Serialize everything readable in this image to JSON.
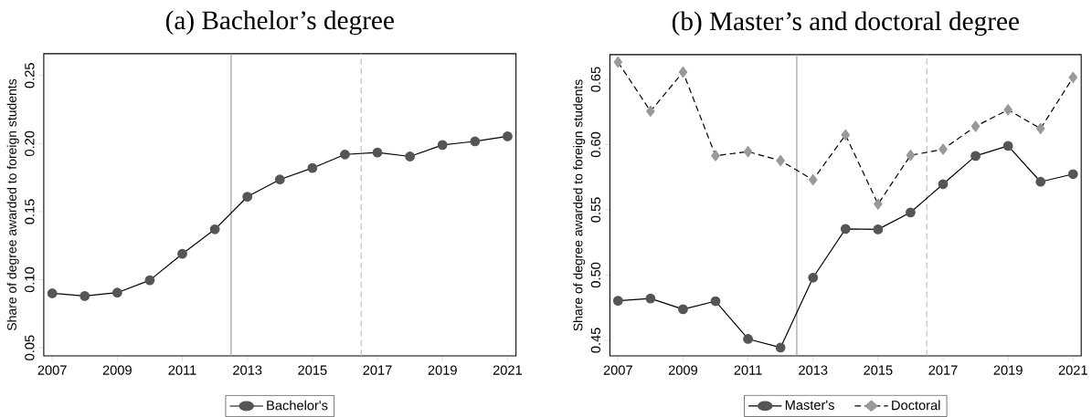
{
  "chart_data": [
    {
      "type": "line",
      "title": "(a) Bachelor’s degree",
      "ylabel": "Share of degree awarded to foreign students",
      "x": [
        2007,
        2008,
        2009,
        2010,
        2011,
        2012,
        2013,
        2014,
        2015,
        2016,
        2017,
        2018,
        2019,
        2020,
        2021
      ],
      "series": [
        {
          "name": "Bachelor's",
          "color": "#555555",
          "marker": "circle",
          "line_style": "solid",
          "values": [
            0.09,
            0.088,
            0.0905,
            0.0996,
            0.119,
            0.137,
            0.161,
            0.1736,
            0.182,
            0.192,
            0.1934,
            0.1905,
            0.199,
            0.2016,
            0.2053
          ]
        }
      ],
      "xlim": [
        2006.74,
        2021.26
      ],
      "xticks": [
        2007,
        2009,
        2011,
        2013,
        2015,
        2017,
        2019,
        2021
      ],
      "ylim": [
        0.044,
        0.266
      ],
      "yticks": [
        {
          "value": 0.05,
          "label": "0.05"
        },
        {
          "value": 0.1,
          "label": "0.10"
        },
        {
          "value": 0.15,
          "label": "0.15"
        },
        {
          "value": 0.2,
          "label": "0.20"
        },
        {
          "value": 0.25,
          "label": "0.25"
        }
      ],
      "ref_lines": [
        {
          "axis": "x",
          "value": 2012.5,
          "color": "#a0a0a0",
          "line_style": "solid"
        },
        {
          "axis": "x",
          "value": 2016.5,
          "color": "#c0c0c0",
          "line_style": "dashed"
        }
      ],
      "grid": false,
      "legend": "bottom"
    },
    {
      "type": "line",
      "title": "(b) Master’s and doctoral degree",
      "ylabel": "Share of degree awarded to foreign students",
      "x": [
        2007,
        2008,
        2009,
        2010,
        2011,
        2012,
        2013,
        2014,
        2015,
        2016,
        2017,
        2018,
        2019,
        2020,
        2021
      ],
      "series": [
        {
          "name": "Master's",
          "color": "#555555",
          "marker": "circle",
          "line_style": "solid",
          "values": [
            0.4803,
            0.482,
            0.4738,
            0.48,
            0.451,
            0.4444,
            0.498,
            0.5354,
            0.535,
            0.548,
            0.5697,
            0.5913,
            0.599,
            0.5715,
            0.5774
          ]
        },
        {
          "name": "Doctoral",
          "color": "#999999",
          "marker": "diamond",
          "line_style": "dashed",
          "values": [
            0.6633,
            0.6256,
            0.6556,
            0.5915,
            0.5946,
            0.5877,
            0.573,
            0.6074,
            0.5544,
            0.5918,
            0.5964,
            0.614,
            0.6267,
            0.6123,
            0.6515
          ]
        }
      ],
      "xlim": [
        2006.75,
        2021.25
      ],
      "xticks": [
        2007,
        2009,
        2011,
        2013,
        2015,
        2017,
        2019,
        2021
      ],
      "ylim": [
        0.438,
        0.669
      ],
      "yticks": [
        {
          "value": 0.45,
          "label": "0.45"
        },
        {
          "value": 0.5,
          "label": "0.50"
        },
        {
          "value": 0.55,
          "label": "0.55"
        },
        {
          "value": 0.6,
          "label": "0.60"
        },
        {
          "value": 0.65,
          "label": "0.65"
        }
      ],
      "ref_lines": [
        {
          "axis": "x",
          "value": 2012.5,
          "color": "#a0a0a0",
          "line_style": "solid"
        },
        {
          "axis": "x",
          "value": 2016.5,
          "color": "#c0c0c0",
          "line_style": "dashed"
        }
      ],
      "grid": false,
      "legend": "bottom"
    }
  ]
}
